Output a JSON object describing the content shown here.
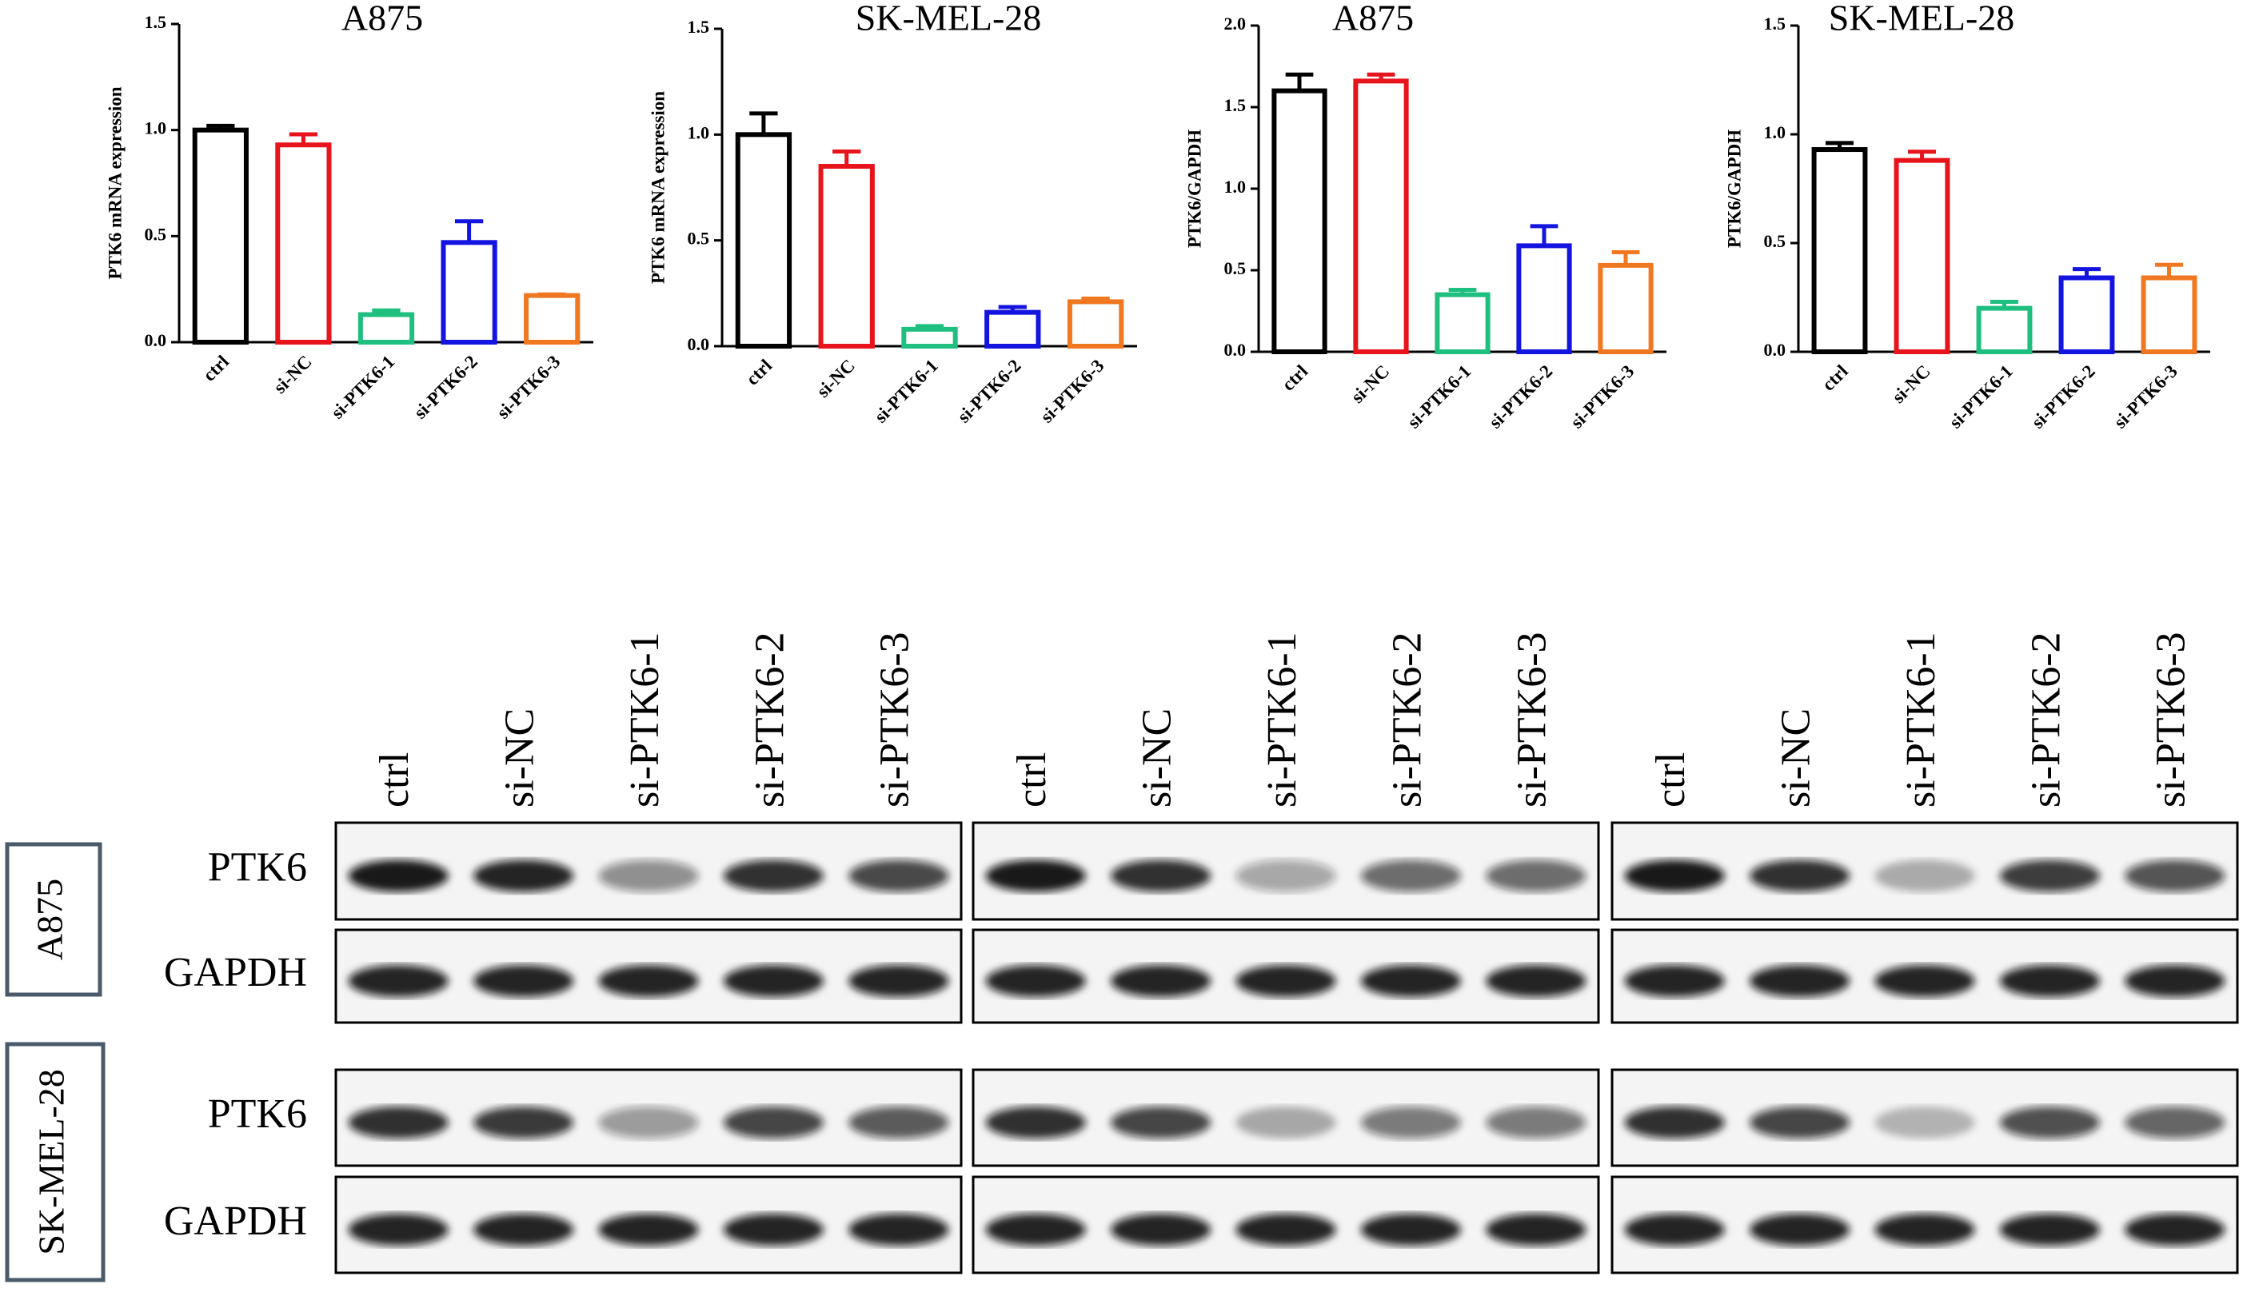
{
  "chart_data": [
    {
      "type": "bar",
      "title": "A875",
      "y_label": "PTK6 mRNA expression",
      "categories": [
        "ctrl",
        "si-NC",
        "si-PTK6-1",
        "si-PTK6-2",
        "si-PTK6-3"
      ],
      "values": [
        1.0,
        0.93,
        0.13,
        0.47,
        0.22
      ],
      "errors": [
        0.02,
        0.05,
        0.02,
        0.1,
        0.005
      ],
      "colors": [
        "#000000",
        "#e8141c",
        "#1fbf7f",
        "#1414e0",
        "#f07820"
      ],
      "ylim": [
        0,
        1.5
      ],
      "yticks": [
        {
          "value": 0,
          "label": "0.0"
        },
        {
          "value": 0.5,
          "label": "0.5"
        },
        {
          "value": 1,
          "label": "1.0"
        },
        {
          "value": 1.5,
          "label": "1.5"
        }
      ]
    },
    {
      "type": "bar",
      "title": "SK-MEL-28",
      "y_label": "PTK6 mRNA expression",
      "categories": [
        "ctrl",
        "si-NC",
        "si-PTK6-1",
        "si-PTK6-2",
        "si-PTK6-3"
      ],
      "values": [
        1.0,
        0.85,
        0.08,
        0.16,
        0.21
      ],
      "errors": [
        0.1,
        0.07,
        0.015,
        0.025,
        0.015
      ],
      "colors": [
        "#000000",
        "#e8141c",
        "#1fbf7f",
        "#1414e0",
        "#f07820"
      ],
      "ylim": [
        0,
        1.5
      ],
      "yticks": [
        {
          "value": 0,
          "label": "0.0"
        },
        {
          "value": 0.5,
          "label": "0.5"
        },
        {
          "value": 1,
          "label": "1.0"
        },
        {
          "value": 1.5,
          "label": "1.5"
        }
      ]
    },
    {
      "type": "bar",
      "title": "A875",
      "y_label": "PTK6/GAPDH",
      "categories": [
        "ctrl",
        "si-NC",
        "si-PTK6-1",
        "si-PTK6-2",
        "si-PTK6-3"
      ],
      "values": [
        1.6,
        1.66,
        0.35,
        0.65,
        0.53
      ],
      "errors": [
        0.1,
        0.04,
        0.03,
        0.12,
        0.08
      ],
      "colors": [
        "#000000",
        "#e8141c",
        "#1fbf7f",
        "#1414e0",
        "#f07820"
      ],
      "ylim": [
        0,
        2
      ],
      "yticks": [
        {
          "value": 0,
          "label": "0.0"
        },
        {
          "value": 0.5,
          "label": "0.5"
        },
        {
          "value": 1,
          "label": "1.0"
        },
        {
          "value": 1.5,
          "label": "1.5"
        },
        {
          "value": 2,
          "label": "2.0"
        }
      ]
    },
    {
      "type": "bar",
      "title": "SK-MEL-28",
      "y_label": "PTK6/GAPDH",
      "categories": [
        "ctrl",
        "si-NC",
        "si-PTK6-1",
        "si-PTK6-2",
        "si-PTK6-3"
      ],
      "values": [
        0.93,
        0.88,
        0.2,
        0.34,
        0.34
      ],
      "errors": [
        0.03,
        0.04,
        0.03,
        0.04,
        0.06
      ],
      "colors": [
        "#000000",
        "#e8141c",
        "#1fbf7f",
        "#1414e0",
        "#f07820"
      ],
      "ylim": [
        0,
        1.5
      ],
      "yticks": [
        {
          "value": 0,
          "label": "0.0"
        },
        {
          "value": 0.5,
          "label": "0.5"
        },
        {
          "value": 1,
          "label": "1.0"
        },
        {
          "value": 1.5,
          "label": "1.5"
        }
      ]
    }
  ],
  "western_blot": {
    "lanes": [
      "ctrl",
      "si-NC",
      "si-PTK6-1",
      "si-PTK6-2",
      "si-PTK6-3"
    ],
    "proteins": [
      "PTK6",
      "GAPDH"
    ],
    "cell_lines": [
      "A875",
      "SK-MEL-28"
    ]
  }
}
